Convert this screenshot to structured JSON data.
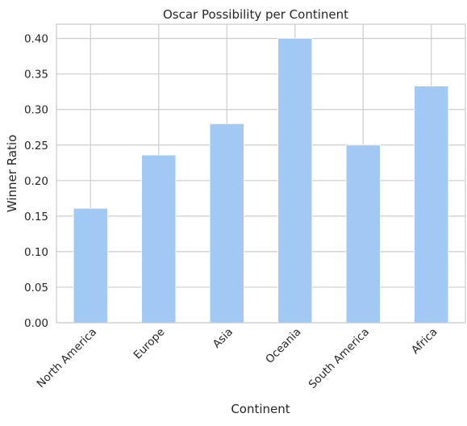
{
  "chart_data": {
    "type": "bar",
    "title": "Oscar Possibility per Continent",
    "xlabel": "Continent",
    "ylabel": "Winner Ratio",
    "categories": [
      "North America",
      "Europe",
      "Asia",
      "Oceania",
      "South America",
      "Africa"
    ],
    "values": [
      0.161,
      0.236,
      0.28,
      0.4,
      0.25,
      0.333
    ],
    "ylim": [
      0,
      0.42
    ],
    "yticks": [
      "0.00",
      "0.05",
      "0.10",
      "0.15",
      "0.20",
      "0.25",
      "0.30",
      "0.35",
      "0.40"
    ],
    "grid": true,
    "legend": "none",
    "colors": {
      "bar": "#a1c9f4",
      "grid": "#cccccc",
      "spine": "#cccccc",
      "text": "#262626"
    }
  }
}
